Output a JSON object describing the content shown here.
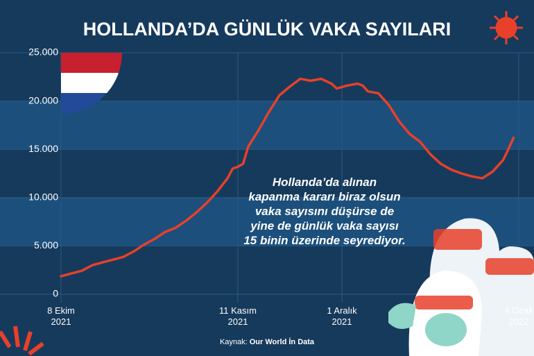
{
  "chart_data": {
    "type": "line",
    "title": "HOLLANDA’DA GÜNLÜK VAKA SAYILARI",
    "annotation": [
      "Hollanda’da alınan",
      "kapanma kararı biraz olsun",
      "vaka sayısını düşürse de",
      "yine de günlük vaka sayısı",
      "15 binin üzerinde seyrediyor."
    ],
    "source_label": "Kaynak:",
    "source": "Our World İn Data",
    "xlim": [
      0,
      88
    ],
    "xticks": [
      {
        "value": 0,
        "label": "8 Ekim 2021"
      },
      {
        "value": 34,
        "label": "11 Kasım 2021"
      },
      {
        "value": 54,
        "label": "1 Aralık 2021"
      },
      {
        "value": 88,
        "label": "4 Ocak 2022"
      }
    ],
    "ylim": [
      0,
      25000
    ],
    "yticks": [
      0,
      {
        "value": 5000,
        "label": "5.000"
      },
      {
        "value": 10000,
        "label": "10.000"
      },
      {
        "value": 15000,
        "label": "15.000"
      },
      {
        "value": 20000,
        "label": "20.000"
      },
      {
        "value": 25000,
        "label": "25.000"
      }
    ],
    "bands": true,
    "x": [
      0,
      2,
      4,
      6,
      8,
      10,
      12,
      14,
      16,
      18,
      20,
      22,
      24,
      26,
      28,
      30,
      32,
      33,
      34,
      35,
      36,
      38,
      40,
      42,
      44,
      46,
      48,
      50,
      52,
      53,
      55,
      57,
      58,
      59,
      61,
      63,
      65,
      67,
      69,
      71,
      73,
      75,
      77,
      79,
      81,
      83,
      85,
      86,
      87
    ],
    "series": [
      {
        "color": "#e8402a",
        "values": [
          1860,
          2150,
          2430,
          3000,
          3300,
          3580,
          3870,
          4440,
          5150,
          5730,
          6440,
          6870,
          7590,
          8450,
          9450,
          10600,
          12000,
          13000,
          13200,
          13500,
          15300,
          17000,
          18900,
          20600,
          21500,
          22300,
          22100,
          22300,
          21800,
          21300,
          21600,
          21800,
          21600,
          21000,
          20800,
          19600,
          17900,
          16600,
          15800,
          14500,
          13500,
          12900,
          12500,
          12200,
          12000,
          12700,
          13900,
          15000,
          16200
        ]
      }
    ]
  }
}
